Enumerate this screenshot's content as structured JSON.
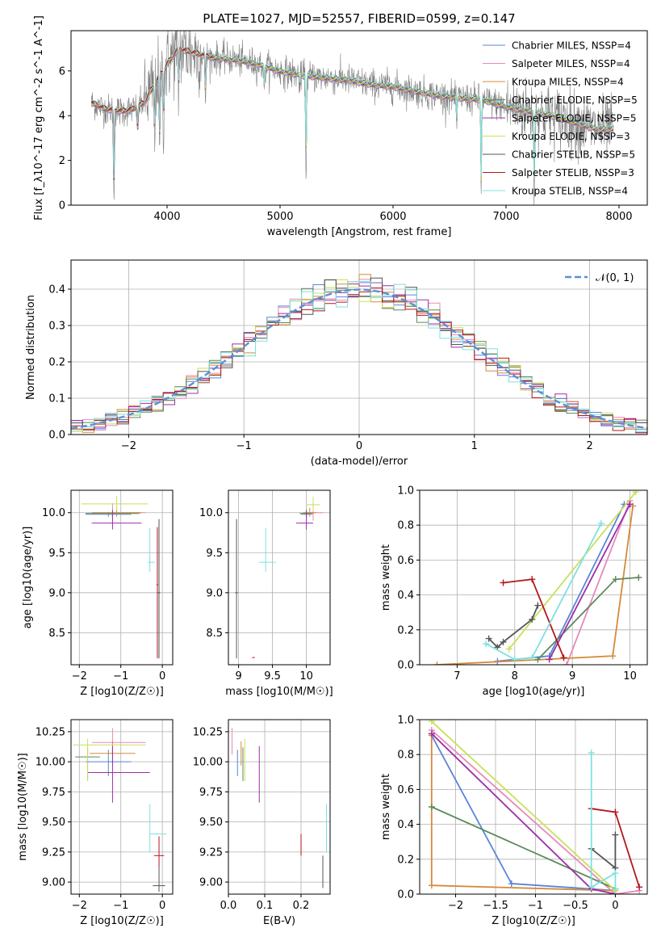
{
  "figure": {
    "title": "PLATE=1027, MJD=52557, FIBERID=0599, z=0.147"
  },
  "colors": {
    "models": [
      "#5b84d8",
      "#e889bd",
      "#d58a3a",
      "#5b8a5b",
      "#9c2fa8",
      "#c8e05a",
      "#555555",
      "#b5161a",
      "#7fe0e0"
    ],
    "gauss": "#5b8fd8",
    "data": "#808080"
  },
  "chart_data": [
    {
      "id": "spectrum",
      "type": "line",
      "xlabel": "wavelength [Angstrom, rest frame]",
      "ylabel": "Flux [f_λ10^-17 erg cm^-2 s^-1 A^-1]",
      "xlim": [
        3150,
        8250
      ],
      "ylim": [
        0,
        7.8
      ],
      "xticks": [
        4000,
        5000,
        6000,
        7000,
        8000
      ],
      "yticks": [
        0,
        2,
        4,
        6
      ],
      "legend_position": "upper right",
      "series": [
        {
          "name": "Chabrier MILES, N_SSP=4"
        },
        {
          "name": "Salpeter MILES, N_SSP=4"
        },
        {
          "name": "Kroupa MILES, N_SSP=4"
        },
        {
          "name": "Chabrier ELODIE, N_SSP=5"
        },
        {
          "name": "Salpeter ELODIE, N_SSP=5"
        },
        {
          "name": "Kroupa ELODIE, N_SSP=3"
        },
        {
          "name": "Chabrier STELIB, N_SSP=5"
        },
        {
          "name": "Salpeter STELIB, N_SSP=3"
        },
        {
          "name": "Kroupa STELIB, N_SSP=4"
        }
      ],
      "continuum": {
        "x": [
          3320,
          3450,
          3600,
          3700,
          3800,
          3900,
          4000,
          4100,
          4250,
          4400,
          4600,
          4800,
          5000,
          5200,
          5400,
          5600,
          5800,
          6000,
          6200,
          6400,
          6600,
          6800,
          7000,
          7200,
          7400,
          7600,
          7800
        ],
        "y": [
          4.6,
          4.3,
          4.2,
          4.3,
          4.6,
          5.5,
          6.3,
          7.0,
          6.8,
          6.6,
          6.5,
          6.3,
          6.0,
          5.8,
          5.7,
          5.6,
          5.4,
          5.3,
          5.1,
          4.9,
          4.8,
          4.7,
          4.4,
          4.2,
          4.0,
          3.7,
          3.4
        ]
      },
      "absorption_lines": [
        {
          "x": 3530,
          "depth": 4.2
        },
        {
          "x": 3740,
          "depth": 1.2
        },
        {
          "x": 3890,
          "depth": 2.5
        },
        {
          "x": 3934,
          "depth": 3.5
        },
        {
          "x": 3970,
          "depth": 2.5
        },
        {
          "x": 4102,
          "depth": 2.0
        },
        {
          "x": 4340,
          "depth": 2.0
        },
        {
          "x": 4861,
          "depth": 1.0
        },
        {
          "x": 5175,
          "depth": 0.6
        },
        {
          "x": 5230,
          "depth": 4.3
        },
        {
          "x": 6563,
          "depth": 1.2
        },
        {
          "x": 6780,
          "depth": 4.2
        },
        {
          "x": 7250,
          "depth": 4.0
        }
      ]
    },
    {
      "id": "residuals",
      "type": "step-histogram",
      "xlabel": "(data-model)/error",
      "ylabel": "Normed distribution",
      "xlim": [
        -2.5,
        2.5
      ],
      "ylim": [
        0,
        0.48
      ],
      "xticks": [
        -2,
        -1,
        0,
        1,
        2
      ],
      "yticks": [
        0.0,
        0.1,
        0.2,
        0.3,
        0.4
      ],
      "bin_width": 0.1,
      "grid": true,
      "legend": "𝒩(0, 1)",
      "legend_position": "upper right"
    },
    {
      "id": "age-vs-Z",
      "type": "errorbar",
      "xlabel": "Z [log10(Z/Z☉)]",
      "ylabel": "age [log10(age/yr)]",
      "xlim": [
        -2.2,
        0.25
      ],
      "ylim": [
        8.1,
        10.28
      ],
      "xticks": [
        -2,
        -1,
        0
      ],
      "yticks": [
        8.5,
        9.0,
        9.5,
        10.0
      ],
      "grid": true,
      "points": [
        {
          "x": -1.3,
          "xerr": [
            0.55,
            0.55
          ],
          "y": 9.98,
          "yerr": [
            0.03,
            0.03
          ],
          "c": 0
        },
        {
          "x": -1.2,
          "xerr": [
            0.5,
            0.8
          ],
          "y": 10.0,
          "yerr": [
            0.1,
            0.12
          ],
          "c": 1
        },
        {
          "x": -1.1,
          "xerr": [
            0.6,
            0.6
          ],
          "y": 10.0,
          "yerr": [
            0.05,
            0.06
          ],
          "c": 2
        },
        {
          "x": -1.2,
          "xerr": [
            0.65,
            0.65
          ],
          "y": 9.99,
          "yerr": [
            0.05,
            0.05
          ],
          "c": 3
        },
        {
          "x": -1.2,
          "xerr": [
            0.5,
            0.7
          ],
          "y": 9.87,
          "yerr": [
            0.08,
            0.15
          ],
          "c": 4
        },
        {
          "x": -1.1,
          "xerr": [
            0.85,
            0.75
          ],
          "y": 10.11,
          "yerr": [
            0.08,
            0.1
          ],
          "c": 5
        },
        {
          "x": -0.08,
          "xerr": [
            0.03,
            0.03
          ],
          "y": 9.0,
          "yerr": [
            0.82,
            0.92
          ],
          "c": 6
        },
        {
          "x": -0.12,
          "xerr": [
            0.02,
            0.02
          ],
          "y": 9.1,
          "yerr": [
            0.92,
            0.72
          ],
          "c": 7
        },
        {
          "x": -0.3,
          "xerr": [
            0.05,
            0.12
          ],
          "y": 9.38,
          "yerr": [
            0.12,
            0.43
          ],
          "c": 8
        }
      ]
    },
    {
      "id": "age-vs-mass",
      "type": "errorbar",
      "xlabel": "mass [log10(M/M☉)]",
      "ylabel": "",
      "xlim": [
        8.85,
        10.35
      ],
      "ylim": [
        8.1,
        10.28
      ],
      "xticks": [
        9.0,
        9.5,
        10.0
      ],
      "yticks": [
        8.5,
        9.0,
        9.5,
        10.0
      ],
      "grid": true,
      "points": [
        {
          "x": 10.0,
          "xerr": [
            0.08,
            0.08
          ],
          "y": 9.98,
          "yerr": [
            0.03,
            0.03
          ],
          "c": 0
        },
        {
          "x": 10.1,
          "xerr": [
            0.15,
            0.15
          ],
          "y": 10.0,
          "yerr": [
            0.1,
            0.12
          ],
          "c": 1
        },
        {
          "x": 10.05,
          "xerr": [
            0.1,
            0.1
          ],
          "y": 10.0,
          "yerr": [
            0.05,
            0.06
          ],
          "c": 2
        },
        {
          "x": 10.0,
          "xerr": [
            0.1,
            0.1
          ],
          "y": 9.99,
          "yerr": [
            0.05,
            0.05
          ],
          "c": 3
        },
        {
          "x": 10.0,
          "xerr": [
            0.15,
            0.1
          ],
          "y": 9.87,
          "yerr": [
            0.08,
            0.15
          ],
          "c": 4
        },
        {
          "x": 10.1,
          "xerr": [
            0.1,
            0.1
          ],
          "y": 10.1,
          "yerr": [
            0.08,
            0.1
          ],
          "c": 5
        },
        {
          "x": 8.97,
          "xerr": [
            0.02,
            0.02
          ],
          "y": 9.0,
          "yerr": [
            0.82,
            0.92
          ],
          "c": 6
        },
        {
          "x": 9.22,
          "xerr": [
            0.02,
            0.02
          ],
          "y": 8.19,
          "yerr": [
            0.0,
            0.0
          ],
          "c": 7
        },
        {
          "x": 9.4,
          "xerr": [
            0.1,
            0.15
          ],
          "y": 9.38,
          "yerr": [
            0.12,
            0.43
          ],
          "c": 8
        }
      ]
    },
    {
      "id": "weight-vs-age",
      "type": "line",
      "xlabel": "age [log10(age/yr)]",
      "ylabel": "mass weight",
      "xlim": [
        6.35,
        10.3
      ],
      "ylim": [
        0,
        1.0
      ],
      "xticks": [
        7,
        8,
        9,
        10
      ],
      "yticks": [
        0.0,
        0.2,
        0.4,
        0.6,
        0.8,
        1.0
      ],
      "grid": true,
      "series": [
        {
          "c": 0,
          "x": [
            7.7,
            8.6,
            9.9
          ],
          "y": [
            0.02,
            0.05,
            0.92
          ]
        },
        {
          "c": 1,
          "x": [
            8.9,
            10.0
          ],
          "y": [
            0.0,
            0.94
          ]
        },
        {
          "c": 2,
          "x": [
            6.65,
            9.7,
            10.05
          ],
          "y": [
            0.0,
            0.05,
            0.91
          ]
        },
        {
          "c": 3,
          "x": [
            8.4,
            9.75,
            10.15
          ],
          "y": [
            0.03,
            0.49,
            0.5
          ]
        },
        {
          "c": 4,
          "x": [
            8.6,
            10.0
          ],
          "y": [
            0.03,
            0.92
          ]
        },
        {
          "c": 5,
          "x": [
            7.9,
            10.1
          ],
          "y": [
            0.09,
            0.99
          ]
        },
        {
          "c": 6,
          "x": [
            7.55,
            7.7,
            7.8,
            8.3,
            8.4
          ],
          "y": [
            0.15,
            0.1,
            0.13,
            0.26,
            0.34
          ]
        },
        {
          "c": 7,
          "x": [
            7.8,
            8.3,
            8.85
          ],
          "y": [
            0.47,
            0.49,
            0.04
          ]
        },
        {
          "c": 8,
          "x": [
            7.5,
            8.0,
            8.3,
            9.5
          ],
          "y": [
            0.12,
            0.03,
            0.04,
            0.81
          ]
        }
      ]
    },
    {
      "id": "mass-vs-Z",
      "type": "errorbar",
      "xlabel": "Z [log10(Z/Z☉)]",
      "ylabel": "mass [log10(M/M☉)]",
      "xlim": [
        -2.2,
        0.25
      ],
      "ylim": [
        8.9,
        10.35
      ],
      "xticks": [
        -2,
        -1,
        0
      ],
      "yticks": [
        9.0,
        9.25,
        9.5,
        9.75,
        10.0,
        10.25
      ],
      "grid": true,
      "points": [
        {
          "x": -1.3,
          "xerr": [
            0.55,
            0.55
          ],
          "y": 10.0,
          "yerr": [
            0.12,
            0.1
          ],
          "c": 0
        },
        {
          "x": -1.2,
          "xerr": [
            0.5,
            0.8
          ],
          "y": 10.16,
          "yerr": [
            0.1,
            0.12
          ],
          "c": 1
        },
        {
          "x": -1.2,
          "xerr": [
            0.55,
            0.55
          ],
          "y": 10.07,
          "yerr": [
            0.1,
            0.1
          ],
          "c": 2
        },
        {
          "x": -1.8,
          "xerr": [
            0.3,
            0.3
          ],
          "y": 10.04,
          "yerr": [
            0.2,
            0.08
          ],
          "c": 3
        },
        {
          "x": -1.2,
          "xerr": [
            0.6,
            0.9
          ],
          "y": 9.91,
          "yerr": [
            0.25,
            0.22
          ],
          "c": 4
        },
        {
          "x": -1.8,
          "xerr": [
            0.35,
            1.4
          ],
          "y": 10.14,
          "yerr": [
            0.3,
            0.05
          ],
          "c": 5
        },
        {
          "x": -0.08,
          "xerr": [
            0.15,
            0.15
          ],
          "y": 8.97,
          "yerr": [
            0.05,
            0.15
          ],
          "c": 6
        },
        {
          "x": -0.08,
          "xerr": [
            0.12,
            0.12
          ],
          "y": 9.22,
          "yerr": [
            0.1,
            0.16
          ],
          "c": 7
        },
        {
          "x": -0.3,
          "xerr": [
            0.0,
            0.4
          ],
          "y": 9.4,
          "yerr": [
            0.15,
            0.25
          ],
          "c": 8
        }
      ]
    },
    {
      "id": "mass-vs-EBV",
      "type": "errorbar",
      "xlabel": "E(B-V)",
      "ylabel": "",
      "xlim": [
        0.0,
        0.28
      ],
      "ylim": [
        8.9,
        10.35
      ],
      "xticks": [
        0.0,
        0.1,
        0.2
      ],
      "yticks": [
        9.0,
        9.25,
        9.5,
        9.75,
        10.0,
        10.25
      ],
      "grid": true,
      "points": [
        {
          "x": 0.025,
          "xerr": [
            0,
            0
          ],
          "y": 10.0,
          "yerr": [
            0.12,
            0.1
          ],
          "c": 0
        },
        {
          "x": 0.01,
          "xerr": [
            0,
            0
          ],
          "y": 10.16,
          "yerr": [
            0.1,
            0.12
          ],
          "c": 1
        },
        {
          "x": 0.035,
          "xerr": [
            0,
            0
          ],
          "y": 10.07,
          "yerr": [
            0.1,
            0.1
          ],
          "c": 2
        },
        {
          "x": 0.04,
          "xerr": [
            0,
            0
          ],
          "y": 10.04,
          "yerr": [
            0.2,
            0.08
          ],
          "c": 3
        },
        {
          "x": 0.085,
          "xerr": [
            0,
            0
          ],
          "y": 9.91,
          "yerr": [
            0.25,
            0.22
          ],
          "c": 4
        },
        {
          "x": 0.045,
          "xerr": [
            0,
            0
          ],
          "y": 10.14,
          "yerr": [
            0.3,
            0.05
          ],
          "c": 5
        },
        {
          "x": 0.26,
          "xerr": [
            0,
            0
          ],
          "y": 9.1,
          "yerr": [
            0.15,
            0.12
          ],
          "c": 6
        },
        {
          "x": 0.2,
          "xerr": [
            0,
            0
          ],
          "y": 9.32,
          "yerr": [
            0.1,
            0.08
          ],
          "c": 7
        },
        {
          "x": 0.27,
          "xerr": [
            0,
            0
          ],
          "y": 9.45,
          "yerr": [
            0.2,
            0.2
          ],
          "c": 8
        }
      ]
    },
    {
      "id": "weight-vs-Z",
      "type": "line",
      "xlabel": "Z [log10(Z/Z☉)]",
      "ylabel": "mass weight",
      "xlim": [
        -2.45,
        0.4
      ],
      "ylim": [
        0,
        1.0
      ],
      "xticks": [
        -2.0,
        -1.5,
        -1.0,
        -0.5,
        0.0
      ],
      "yticks": [
        0.0,
        0.2,
        0.4,
        0.6,
        0.8,
        1.0
      ],
      "grid": true,
      "series": [
        {
          "c": 0,
          "x": [
            -2.3,
            -1.3,
            0.0
          ],
          "y": [
            0.91,
            0.06,
            0.02
          ]
        },
        {
          "c": 1,
          "x": [
            -2.3,
            0.0,
            0.3
          ],
          "y": [
            0.94,
            0.0,
            0.02
          ]
        },
        {
          "c": 2,
          "x": [
            -2.3,
            -2.3,
            0.0,
            0.0
          ],
          "y": [
            0.91,
            0.05,
            0.02,
            0.0
          ]
        },
        {
          "c": 3,
          "x": [
            -2.3,
            0.0
          ],
          "y": [
            0.5,
            0.03
          ]
        },
        {
          "c": 4,
          "x": [
            -2.3,
            -0.3,
            0.0
          ],
          "y": [
            0.92,
            0.03,
            0.0
          ]
        },
        {
          "c": 5,
          "x": [
            -2.3,
            0.0
          ],
          "y": [
            0.99,
            0.02
          ]
        },
        {
          "c": 6,
          "x": [
            -0.3,
            0.0,
            0.0
          ],
          "y": [
            0.26,
            0.15,
            0.34
          ]
        },
        {
          "c": 7,
          "x": [
            -0.3,
            0.0,
            0.3
          ],
          "y": [
            0.49,
            0.47,
            0.04
          ]
        },
        {
          "c": 8,
          "x": [
            -0.3,
            -0.3,
            0.0,
            0.0
          ],
          "y": [
            0.81,
            0.04,
            0.12,
            0.03
          ]
        }
      ]
    }
  ]
}
